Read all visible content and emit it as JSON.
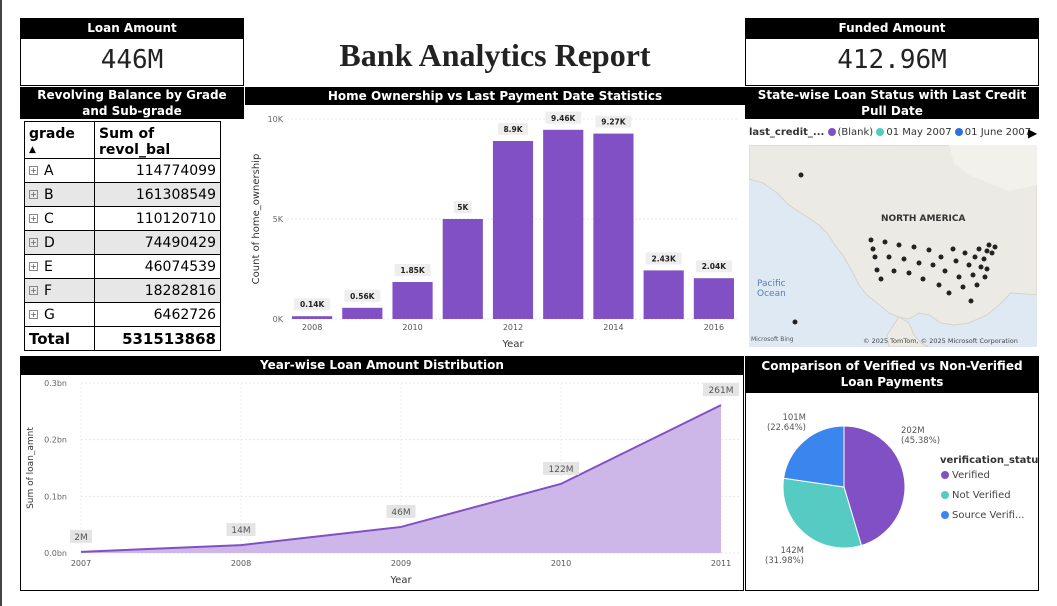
{
  "report_title": "Bank Analytics Report",
  "kpis": {
    "loan_amount": {
      "label": "Loan Amount",
      "value": "446M"
    },
    "funded_amount": {
      "label": "Funded Amount",
      "value": "412.96M"
    }
  },
  "grade_table": {
    "title": "Revolving Balance by Grade and Sub-grade",
    "columns": [
      "grade",
      "Sum of revol_bal"
    ],
    "rows": [
      {
        "grade": "A",
        "value": "114774099"
      },
      {
        "grade": "B",
        "value": "161308549"
      },
      {
        "grade": "C",
        "value": "110120710"
      },
      {
        "grade": "D",
        "value": "74490429"
      },
      {
        "grade": "E",
        "value": "46074539"
      },
      {
        "grade": "F",
        "value": "18282816"
      },
      {
        "grade": "G",
        "value": "6462726"
      }
    ],
    "total_label": "Total",
    "total_value": "531513868"
  },
  "home_chart": {
    "title": "Home Ownership vs Last Payment Date Statistics",
    "ylabel": "Count of home_ownership",
    "xlabel": "Year",
    "yticks": [
      "0K",
      "5K",
      "10K"
    ],
    "xticks": [
      "2008",
      "2010",
      "2012",
      "2014",
      "2016"
    ]
  },
  "map": {
    "title": "State-wise Loan Status with Last Credit Pull Date",
    "legend_field": "last_credit_...",
    "legend_items": [
      {
        "label": "(Blank)",
        "color": "#7f4fc4"
      },
      {
        "label": "01 May 2007",
        "color": "#4ecdc4"
      },
      {
        "label": "01 June 2007",
        "color": "#2f6fe0"
      }
    ],
    "region_label": "NORTH AMERICA",
    "ocean_label": "Pacific Ocean",
    "attribution": "© 2025 TomTom, © 2025 Microsoft Corporation",
    "bing_label": "Microsoft Bing"
  },
  "area_chart": {
    "title": "Year-wise Loan Amount Distribution",
    "ylabel": "Sum of loan_amnt",
    "xlabel": "Year",
    "yticks": [
      "0.0bn",
      "0.1bn",
      "0.2bn",
      "0.3bn"
    ]
  },
  "pie_chart": {
    "title": "Comparison of Verified vs Non-Verified Loan Payments",
    "legend_title": "verification_status",
    "labels": [
      {
        "value": "202M",
        "pct": "(45.38%)"
      },
      {
        "value": "142M",
        "pct": "(31.98%)"
      },
      {
        "value": "101M",
        "pct": "(22.64%)"
      }
    ]
  },
  "chart_data": [
    {
      "type": "bar",
      "title": "Home Ownership vs Last Payment Date Statistics",
      "xlabel": "Year",
      "ylabel": "Count of home_ownership",
      "x": [
        2008,
        2009,
        2010,
        2011,
        2012,
        2013,
        2014,
        2015,
        2016
      ],
      "values": [
        140,
        560,
        1850,
        5000,
        8900,
        9460,
        9270,
        2430,
        2040
      ],
      "data_labels": [
        "0.14K",
        "0.56K",
        "1.85K",
        "5K",
        "8.9K",
        "9.46K",
        "9.27K",
        "2.43K",
        "2.04K"
      ],
      "ylim": [
        0,
        10000
      ],
      "color": "#8150c4"
    },
    {
      "type": "area",
      "title": "Year-wise Loan Amount Distribution",
      "xlabel": "Year",
      "ylabel": "Sum of loan_amnt",
      "x": [
        "2007",
        "2008",
        "2009",
        "2010",
        "2011"
      ],
      "values": [
        2,
        14,
        46,
        122,
        261
      ],
      "data_labels": [
        "2M",
        "14M",
        "46M",
        "122M",
        "261M"
      ],
      "ylim": [
        0,
        300
      ],
      "line_color": "#8150c4",
      "fill_color": "#cdb6e8"
    },
    {
      "type": "pie",
      "title": "Comparison of Verified vs Non-Verified Loan Payments",
      "categories": [
        "Verified",
        "Not Verified",
        "Source Verifi..."
      ],
      "values": [
        202,
        142,
        101
      ],
      "percent": [
        45.38,
        31.98,
        22.64
      ],
      "colors": [
        "#8150c4",
        "#55cbc4",
        "#3a86ee"
      ]
    }
  ]
}
